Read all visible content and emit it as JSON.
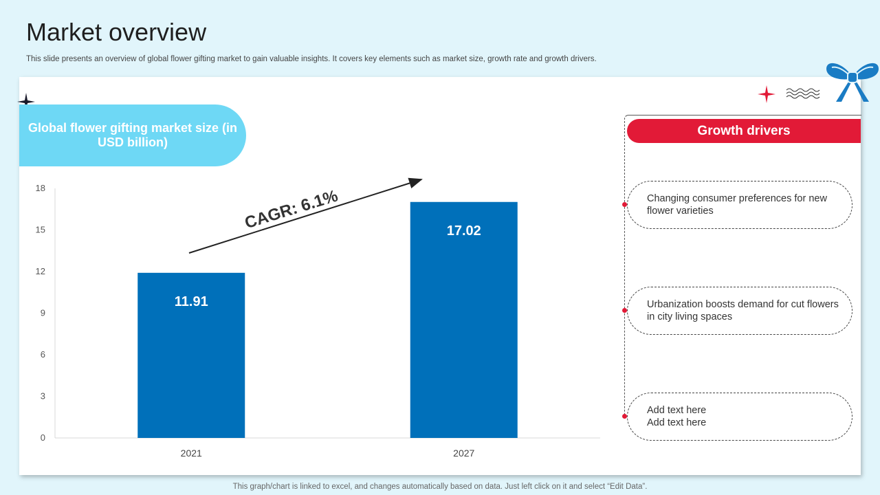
{
  "page": {
    "title": "Market overview",
    "subtitle": "This slide presents an overview of global flower gifting market to gain valuable insights. It covers key elements such as market size, growth rate and growth drivers.",
    "footer": "This graph/chart is linked to excel, and changes automatically based on data. Just left click on it and select “Edit Data”."
  },
  "chart_panel": {
    "heading": "Global flower gifting market size (in USD billion)",
    "cagr_label": "CAGR: 6.1%"
  },
  "chart_data": {
    "type": "bar",
    "title": "Global flower gifting market size (in USD billion)",
    "categories": [
      "2021",
      "2027"
    ],
    "values": [
      11.91,
      17.02
    ],
    "value_labels": [
      "11.91",
      "17.02"
    ],
    "ylim": [
      0,
      18
    ],
    "yticks": [
      0,
      3,
      6,
      9,
      12,
      15,
      18
    ],
    "grid": false,
    "legend": "none"
  },
  "growth_drivers": {
    "heading": "Growth drivers",
    "items": [
      {
        "text": "Changing consumer preferences for new flower varieties"
      },
      {
        "text": "Urbanization boosts demand for cut flowers in city living spaces"
      },
      {
        "text": "Add text here\nAdd text here"
      }
    ]
  },
  "colors": {
    "background": "#e1f5fb",
    "bar": "#0070ba",
    "pill": "#6ed8f5",
    "accent_red": "#e21a37",
    "bow": "#1a7cc4"
  },
  "icons": {
    "bow": "ribbon-bow-icon",
    "star_dark": "sparkle-star-icon",
    "star_red": "sparkle-star-icon",
    "waves": "wavy-lines-icon"
  }
}
